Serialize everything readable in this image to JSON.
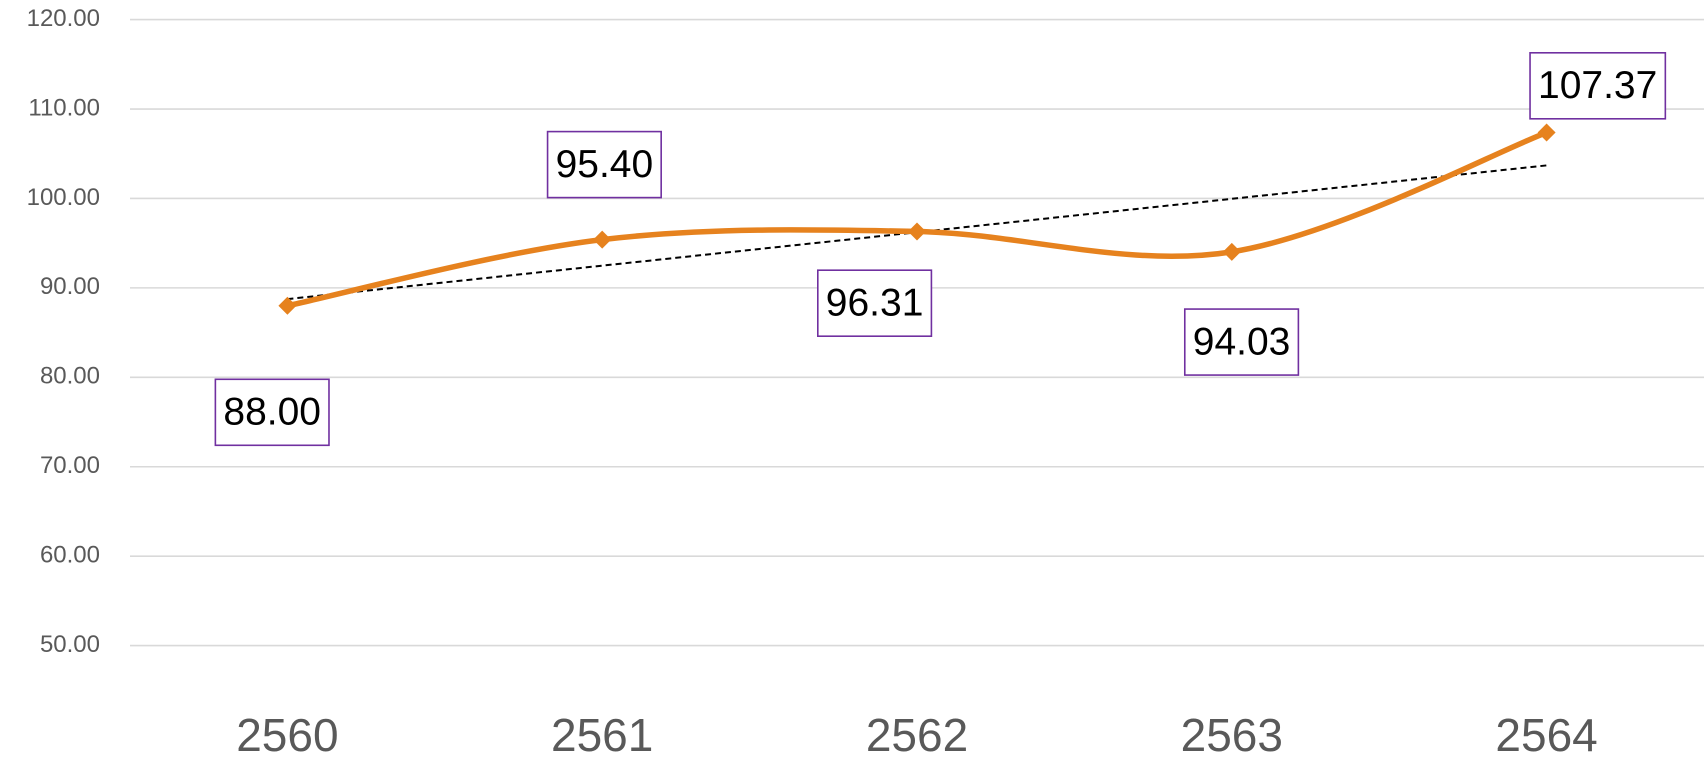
{
  "chart_data": {
    "type": "line",
    "categories": [
      "2560",
      "2561",
      "2562",
      "2563",
      "2564"
    ],
    "series": [
      {
        "color": "#e6821e",
        "smooth": true,
        "marker": "diamond",
        "trendline": "linear",
        "values": [
          88,
          95.4,
          96.31,
          94.03,
          107.37
        ],
        "value_labels": [
          "88.00",
          "95.40",
          "96.31",
          "94.03",
          "107.37"
        ]
      }
    ],
    "ylim": [
      50,
      120
    ],
    "yticks": [
      {
        "value": 50,
        "label": "50.00"
      },
      {
        "value": 60,
        "label": "60.00"
      },
      {
        "value": 70,
        "label": "70.00"
      },
      {
        "value": 80,
        "label": "80.00"
      },
      {
        "value": 90,
        "label": "90.00"
      },
      {
        "value": 100,
        "label": "100.00"
      },
      {
        "value": 110,
        "label": "110.00"
      },
      {
        "value": 120,
        "label": "120.00"
      }
    ],
    "grid": true
  }
}
